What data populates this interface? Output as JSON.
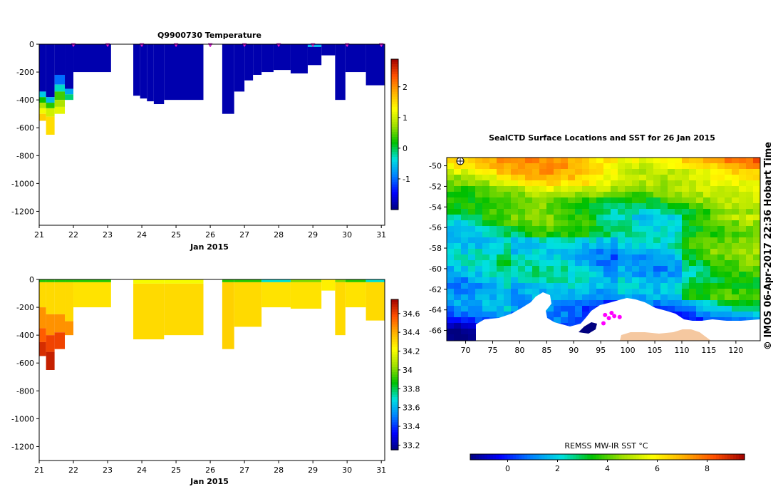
{
  "figure": {
    "credit": "© IMOS 06-Apr-2017 22:36 Hobart Time"
  },
  "chart_data": [
    {
      "type": "heatmap",
      "title": "Q9900730  Temperature",
      "xlabel": "Jan 2015",
      "ylabel": "",
      "xlim": [
        21,
        31.1
      ],
      "ylim": [
        -1300,
        0
      ],
      "xticks": [
        21,
        22,
        23,
        24,
        25,
        26,
        27,
        28,
        29,
        30,
        31
      ],
      "yticks": [
        0,
        -200,
        -400,
        -600,
        -800,
        -1000,
        -1200
      ],
      "colorbar": {
        "range": [
          -2,
          2.9
        ],
        "ticks": [
          2,
          1,
          0,
          -1
        ],
        "colors": [
          "#00007f",
          "#0000ff",
          "#0080ff",
          "#00e0e0",
          "#00c000",
          "#a0e000",
          "#ffff00",
          "#ffb000",
          "#ff5000",
          "#a00000"
        ]
      },
      "profiles": [
        {
          "x": 21.0,
          "w": 0.2,
          "depth": 550,
          "layers": [
            [
              0,
              340,
              -1.8
            ],
            [
              340,
              380,
              -0.5
            ],
            [
              380,
              420,
              0.2
            ],
            [
              420,
              460,
              0.8
            ],
            [
              460,
              500,
              1.2
            ],
            [
              500,
              550,
              1.6
            ]
          ]
        },
        {
          "x": 21.2,
          "w": 0.25,
          "depth": 650,
          "layers": [
            [
              0,
              380,
              -1.8
            ],
            [
              380,
              420,
              -0.6
            ],
            [
              420,
              460,
              0.3
            ],
            [
              460,
              520,
              1.0
            ],
            [
              520,
              650,
              1.5
            ]
          ]
        },
        {
          "x": 21.45,
          "w": 0.3,
          "depth": 500,
          "layers": [
            [
              0,
              220,
              -1.8
            ],
            [
              220,
              290,
              -1.0
            ],
            [
              290,
              340,
              -0.3
            ],
            [
              340,
              400,
              0.4
            ],
            [
              400,
              450,
              0.8
            ],
            [
              450,
              500,
              1.1
            ]
          ]
        },
        {
          "x": 21.75,
          "w": 0.25,
          "depth": 400,
          "layers": [
            [
              0,
              320,
              -1.8
            ],
            [
              320,
              360,
              -0.7
            ],
            [
              360,
              400,
              -0.1
            ]
          ]
        },
        {
          "x": 22.0,
          "w": 1.1,
          "depth": 200,
          "layers": [
            [
              0,
              200,
              -1.8
            ]
          ]
        },
        {
          "x": 23.75,
          "w": 0.2,
          "depth": 370,
          "layers": [
            [
              0,
              370,
              -1.8
            ]
          ]
        },
        {
          "x": 23.95,
          "w": 0.2,
          "depth": 390,
          "layers": [
            [
              0,
              390,
              -1.8
            ]
          ]
        },
        {
          "x": 24.15,
          "w": 0.2,
          "depth": 410,
          "layers": [
            [
              0,
              410,
              -1.8
            ]
          ]
        },
        {
          "x": 24.35,
          "w": 0.3,
          "depth": 430,
          "layers": [
            [
              0,
              430,
              -1.8
            ]
          ]
        },
        {
          "x": 24.65,
          "w": 1.15,
          "depth": 400,
          "layers": [
            [
              0,
              400,
              -1.8
            ]
          ]
        },
        {
          "x": 26.35,
          "w": 0.35,
          "depth": 500,
          "layers": [
            [
              0,
              500,
              -1.8
            ]
          ]
        },
        {
          "x": 26.7,
          "w": 0.3,
          "depth": 340,
          "layers": [
            [
              0,
              340,
              -1.8
            ]
          ]
        },
        {
          "x": 27.0,
          "w": 0.25,
          "depth": 260,
          "layers": [
            [
              0,
              260,
              -1.8
            ]
          ]
        },
        {
          "x": 27.25,
          "w": 0.25,
          "depth": 220,
          "layers": [
            [
              0,
              220,
              -1.8
            ]
          ]
        },
        {
          "x": 27.5,
          "w": 0.35,
          "depth": 200,
          "layers": [
            [
              0,
              200,
              -1.8
            ]
          ]
        },
        {
          "x": 27.85,
          "w": 0.5,
          "depth": 185,
          "layers": [
            [
              0,
              185,
              -1.8
            ]
          ]
        },
        {
          "x": 28.35,
          "w": 0.5,
          "depth": 210,
          "layers": [
            [
              0,
              210,
              -1.8
            ]
          ]
        },
        {
          "x": 28.85,
          "w": 0.4,
          "depth": 150,
          "layers": [
            [
              0,
              5,
              -1.2
            ],
            [
              5,
              20,
              -0.6
            ],
            [
              20,
              150,
              -1.8
            ]
          ]
        },
        {
          "x": 29.25,
          "w": 0.4,
          "depth": 80,
          "layers": [
            [
              0,
              80,
              -1.8
            ]
          ]
        },
        {
          "x": 29.65,
          "w": 0.3,
          "depth": 400,
          "layers": [
            [
              0,
              400,
              -1.8
            ]
          ]
        },
        {
          "x": 29.95,
          "w": 0.6,
          "depth": 200,
          "layers": [
            [
              0,
              200,
              -1.8
            ]
          ]
        },
        {
          "x": 30.55,
          "w": 0.55,
          "depth": 295,
          "layers": [
            [
              0,
              295,
              -1.8
            ]
          ]
        }
      ],
      "markers": [
        22.0,
        23.0,
        24.0,
        25.0,
        26.0,
        27.0,
        28.0,
        29.0,
        30.0,
        31.0
      ]
    },
    {
      "type": "heatmap",
      "title": "",
      "xlabel": "Jan 2015",
      "ylabel": "",
      "xlim": [
        21,
        31.1
      ],
      "ylim": [
        -1300,
        0
      ],
      "xticks": [
        21,
        22,
        23,
        24,
        25,
        26,
        27,
        28,
        29,
        30,
        31
      ],
      "yticks": [
        0,
        -200,
        -400,
        -600,
        -800,
        -1000,
        -1200
      ],
      "colorbar": {
        "range": [
          33.15,
          34.75
        ],
        "ticks": [
          34.6,
          34.4,
          34.2,
          34,
          33.8,
          33.6,
          33.4,
          33.2
        ],
        "colors": [
          "#00007f",
          "#0000ff",
          "#0080ff",
          "#00e0e0",
          "#00c000",
          "#a0e000",
          "#ffff00",
          "#ffb000",
          "#ff5000",
          "#a00000"
        ]
      },
      "profiles": [
        {
          "x": 21.0,
          "w": 0.2,
          "depth": 550,
          "layers": [
            [
              0,
              20,
              33.9
            ],
            [
              20,
              200,
              34.3
            ],
            [
              200,
              350,
              34.45
            ],
            [
              350,
              450,
              34.55
            ],
            [
              450,
              550,
              34.65
            ]
          ]
        },
        {
          "x": 21.2,
          "w": 0.25,
          "depth": 650,
          "layers": [
            [
              0,
              20,
              33.9
            ],
            [
              20,
              250,
              34.3
            ],
            [
              250,
              400,
              34.45
            ],
            [
              400,
              520,
              34.6
            ],
            [
              520,
              650,
              34.68
            ]
          ]
        },
        {
          "x": 21.45,
          "w": 0.3,
          "depth": 500,
          "layers": [
            [
              0,
              20,
              33.9
            ],
            [
              20,
              250,
              34.3
            ],
            [
              250,
              380,
              34.45
            ],
            [
              380,
              500,
              34.6
            ]
          ]
        },
        {
          "x": 21.75,
          "w": 0.25,
          "depth": 400,
          "layers": [
            [
              0,
              20,
              33.9
            ],
            [
              20,
              300,
              34.3
            ],
            [
              300,
              400,
              34.45
            ]
          ]
        },
        {
          "x": 22.0,
          "w": 1.1,
          "depth": 200,
          "layers": [
            [
              0,
              20,
              33.9
            ],
            [
              20,
              200,
              34.28
            ]
          ]
        },
        {
          "x": 23.75,
          "w": 0.9,
          "depth": 430,
          "layers": [
            [
              0,
              30,
              34.2
            ],
            [
              30,
              430,
              34.3
            ]
          ]
        },
        {
          "x": 24.65,
          "w": 1.15,
          "depth": 400,
          "layers": [
            [
              0,
              30,
              34.2
            ],
            [
              30,
              400,
              34.3
            ]
          ]
        },
        {
          "x": 26.35,
          "w": 0.35,
          "depth": 500,
          "layers": [
            [
              0,
              20,
              33.9
            ],
            [
              20,
              500,
              34.32
            ]
          ]
        },
        {
          "x": 26.7,
          "w": 0.8,
          "depth": 340,
          "layers": [
            [
              0,
              20,
              33.9
            ],
            [
              20,
              340,
              34.3
            ]
          ]
        },
        {
          "x": 27.5,
          "w": 0.85,
          "depth": 200,
          "layers": [
            [
              0,
              20,
              33.7
            ],
            [
              20,
              200,
              34.28
            ]
          ]
        },
        {
          "x": 28.35,
          "w": 0.9,
          "depth": 210,
          "layers": [
            [
              0,
              20,
              34.0
            ],
            [
              20,
              210,
              34.28
            ]
          ]
        },
        {
          "x": 29.25,
          "w": 0.4,
          "depth": 80,
          "layers": [
            [
              0,
              80,
              34.25
            ]
          ]
        },
        {
          "x": 29.65,
          "w": 0.3,
          "depth": 400,
          "layers": [
            [
              0,
              20,
              34.0
            ],
            [
              20,
              400,
              34.3
            ]
          ]
        },
        {
          "x": 29.95,
          "w": 0.6,
          "depth": 200,
          "layers": [
            [
              0,
              20,
              33.9
            ],
            [
              20,
              200,
              34.28
            ]
          ]
        },
        {
          "x": 30.55,
          "w": 0.55,
          "depth": 295,
          "layers": [
            [
              0,
              20,
              33.7
            ],
            [
              20,
              295,
              34.3
            ]
          ]
        }
      ]
    },
    {
      "type": "heatmap",
      "title": "SealCTD Surface Locations and SST for 26 Jan 2015",
      "xlabel": "",
      "ylabel": "",
      "xlim": [
        66.5,
        124.5
      ],
      "ylim": [
        -67,
        -49.2
      ],
      "xticks": [
        70,
        75,
        80,
        85,
        90,
        95,
        100,
        105,
        110,
        115,
        120
      ],
      "yticks": [
        -50,
        -52,
        -54,
        -56,
        -58,
        -60,
        -62,
        -64,
        -66
      ],
      "colorbar": {
        "label": "REMSS MW-IR SST °C",
        "range": [
          -1.5,
          9.5
        ],
        "ticks": [
          0,
          2,
          4,
          6,
          8
        ],
        "colors": [
          "#00007f",
          "#0000ff",
          "#0080ff",
          "#00e0e0",
          "#00c000",
          "#a0e000",
          "#ffff00",
          "#ffb000",
          "#ff5000",
          "#a00000"
        ]
      },
      "sst_field": {
        "lat_bands": [
          [
            -49.2,
            7.0
          ],
          [
            -51.5,
            5.5
          ],
          [
            -53,
            4.2
          ],
          [
            -55,
            3.2
          ],
          [
            -57,
            2.6
          ],
          [
            -59,
            2.3
          ],
          [
            -61,
            2.2
          ],
          [
            -63,
            2.0
          ],
          [
            -65,
            0.5
          ],
          [
            -67,
            -0.5
          ]
        ]
      },
      "seal_locations": [
        {
          "lon": 95.5,
          "lat": -65.3
        },
        {
          "lon": 96.5,
          "lat": -64.8
        },
        {
          "lon": 97.5,
          "lat": -64.6
        },
        {
          "lon": 98.5,
          "lat": -64.7
        },
        {
          "lon": 95.8,
          "lat": -64.5
        },
        {
          "lon": 97.0,
          "lat": -64.3
        }
      ]
    }
  ]
}
